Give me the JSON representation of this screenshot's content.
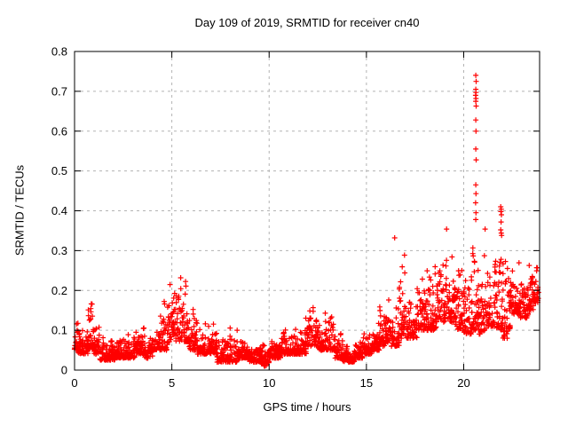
{
  "colors": {
    "marker": "#ff0000",
    "grid": "#b3b3b3",
    "axis": "#000000",
    "background": "#ffffff",
    "text": "#000000"
  },
  "chart_data": {
    "type": "scatter",
    "title": "Day 109 of 2019, SRMTID for receiver cn40",
    "xlabel": "GPS time / hours",
    "ylabel": "SRMTID / TECUs",
    "xlim": [
      0,
      23.9
    ],
    "ylim": [
      0,
      0.8
    ],
    "xticks": [
      0,
      5,
      10,
      15,
      20
    ],
    "yticks": [
      0,
      0.1,
      0.2,
      0.3,
      0.4,
      0.5,
      0.6,
      0.7,
      0.8
    ],
    "x_tick_labels": [
      "0",
      "5",
      "10",
      "15",
      "20"
    ],
    "y_tick_labels": [
      "0",
      "0.1",
      "0.2",
      "0.3",
      "0.4",
      "0.5",
      "0.6",
      "0.7",
      "0.8"
    ],
    "grid": true,
    "legend": null,
    "marker": "plus",
    "series_name": "SRMTID",
    "envelope_segments": [
      [
        0.0,
        0.2,
        0.05,
        0.18
      ],
      [
        0.2,
        0.7,
        0.04,
        0.11
      ],
      [
        0.7,
        1.0,
        0.05,
        0.19
      ],
      [
        1.0,
        1.3,
        0.04,
        0.13
      ],
      [
        1.3,
        2.1,
        0.025,
        0.09
      ],
      [
        2.1,
        2.6,
        0.03,
        0.09
      ],
      [
        2.6,
        3.1,
        0.03,
        0.1
      ],
      [
        3.1,
        3.6,
        0.04,
        0.11
      ],
      [
        3.6,
        4.0,
        0.03,
        0.1
      ],
      [
        4.0,
        4.4,
        0.05,
        0.13
      ],
      [
        4.4,
        4.8,
        0.05,
        0.19
      ],
      [
        4.8,
        5.0,
        0.07,
        0.26
      ],
      [
        5.0,
        5.2,
        0.09,
        0.31
      ],
      [
        5.2,
        5.6,
        0.07,
        0.27
      ],
      [
        5.6,
        5.9,
        0.07,
        0.24
      ],
      [
        5.9,
        6.3,
        0.05,
        0.18
      ],
      [
        6.3,
        6.7,
        0.04,
        0.12
      ],
      [
        6.7,
        7.3,
        0.04,
        0.15
      ],
      [
        7.3,
        8.0,
        0.02,
        0.1
      ],
      [
        8.0,
        8.4,
        0.02,
        0.12
      ],
      [
        8.4,
        9.0,
        0.03,
        0.09
      ],
      [
        9.0,
        9.6,
        0.02,
        0.08
      ],
      [
        9.6,
        10.0,
        0.01,
        0.07
      ],
      [
        10.0,
        10.6,
        0.03,
        0.09
      ],
      [
        10.6,
        11.3,
        0.04,
        0.11
      ],
      [
        11.3,
        11.9,
        0.04,
        0.12
      ],
      [
        11.9,
        12.5,
        0.06,
        0.16
      ],
      [
        12.5,
        12.9,
        0.05,
        0.12
      ],
      [
        12.9,
        13.4,
        0.05,
        0.15
      ],
      [
        13.4,
        13.8,
        0.03,
        0.1
      ],
      [
        13.8,
        14.4,
        0.02,
        0.07
      ],
      [
        14.4,
        14.8,
        0.03,
        0.08
      ],
      [
        14.8,
        15.3,
        0.04,
        0.11
      ],
      [
        15.3,
        15.7,
        0.05,
        0.13
      ],
      [
        15.7,
        16.0,
        0.06,
        0.17
      ],
      [
        16.0,
        16.3,
        0.07,
        0.21
      ],
      [
        16.3,
        16.7,
        0.06,
        0.16
      ],
      [
        16.7,
        17.1,
        0.08,
        0.3
      ],
      [
        17.1,
        17.6,
        0.08,
        0.2
      ],
      [
        17.6,
        18.1,
        0.1,
        0.24
      ],
      [
        18.1,
        18.6,
        0.1,
        0.28
      ],
      [
        18.6,
        19.2,
        0.12,
        0.35
      ],
      [
        19.2,
        19.6,
        0.12,
        0.3
      ],
      [
        19.6,
        20.0,
        0.1,
        0.3
      ],
      [
        20.0,
        20.4,
        0.09,
        0.26
      ],
      [
        20.4,
        20.8,
        0.1,
        0.35
      ],
      [
        20.8,
        21.2,
        0.09,
        0.35
      ],
      [
        21.2,
        21.6,
        0.11,
        0.28
      ],
      [
        21.6,
        22.0,
        0.1,
        0.33
      ],
      [
        22.0,
        22.4,
        0.08,
        0.3
      ],
      [
        22.4,
        22.9,
        0.14,
        0.3
      ],
      [
        22.9,
        23.3,
        0.13,
        0.28
      ],
      [
        23.3,
        23.6,
        0.15,
        0.28
      ],
      [
        23.6,
        23.85,
        0.17,
        0.27
      ]
    ],
    "outlier_points": [
      [
        20.62,
        0.74
      ],
      [
        20.64,
        0.725
      ],
      [
        20.62,
        0.705
      ],
      [
        20.63,
        0.697
      ],
      [
        20.61,
        0.69
      ],
      [
        20.63,
        0.682
      ],
      [
        20.62,
        0.675
      ],
      [
        20.64,
        0.663
      ],
      [
        20.62,
        0.628
      ],
      [
        20.63,
        0.6
      ],
      [
        20.62,
        0.555
      ],
      [
        20.64,
        0.528
      ],
      [
        20.62,
        0.465
      ],
      [
        20.63,
        0.443
      ],
      [
        20.61,
        0.42
      ],
      [
        20.63,
        0.395
      ],
      [
        20.62,
        0.378
      ],
      [
        21.9,
        0.41
      ],
      [
        21.93,
        0.404
      ],
      [
        21.91,
        0.398
      ],
      [
        21.94,
        0.39
      ],
      [
        21.92,
        0.372
      ],
      [
        21.9,
        0.352
      ],
      [
        21.93,
        0.344
      ],
      [
        21.95,
        0.338
      ],
      [
        16.45,
        0.332
      ],
      [
        19.12,
        0.354
      ],
      [
        21.1,
        0.354
      ]
    ]
  }
}
